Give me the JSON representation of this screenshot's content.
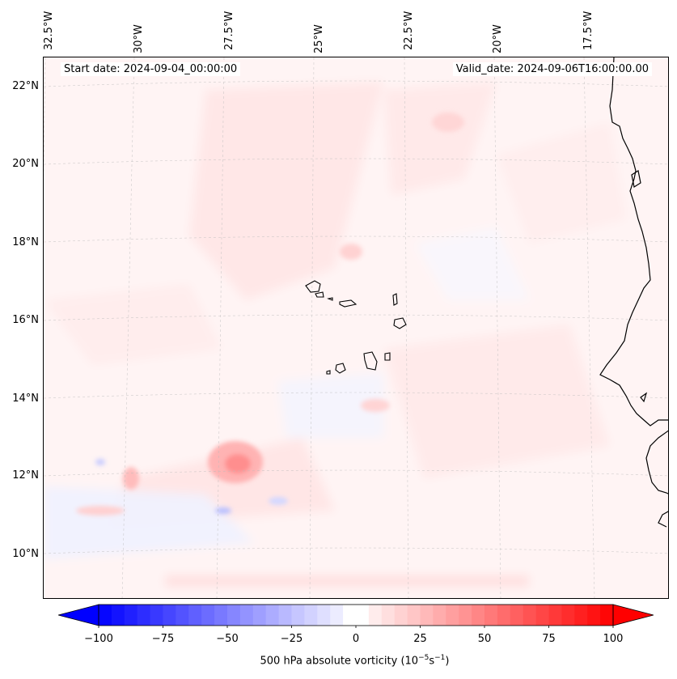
{
  "header": {
    "start_date": "Start date: 2024-09-04_00:00:00",
    "valid_date": "Valid_date: 2024-09-06T16:00:00.00"
  },
  "longitude_labels": [
    "32.5°W",
    "30°W",
    "27.5°W",
    "25°W",
    "22.5°W",
    "20°W",
    "17.5°W"
  ],
  "latitude_labels": [
    "22°N",
    "20°N",
    "18°N",
    "16°N",
    "14°N",
    "12°N",
    "10°N"
  ],
  "colorbar": {
    "ticks": [
      "−100",
      "−75",
      "−50",
      "−25",
      "0",
      "25",
      "50",
      "75",
      "100"
    ],
    "tick_values": [
      -100,
      -75,
      -50,
      -25,
      0,
      25,
      50,
      75,
      100
    ],
    "min": -100,
    "max": 100,
    "step": 5,
    "label_prefix": "500 hPa absolute vorticity (10",
    "label_exp1": "−5",
    "label_mid": "s",
    "label_exp2": "−1",
    "label_suffix": ")",
    "color_low": "#0000ff",
    "color_mid": "#ffffff",
    "color_high": "#ff0000"
  },
  "islands": [
    "Santo Antão",
    "São Vicente",
    "Santa Luzia",
    "São Nicolau",
    "Sal",
    "Boa Vista",
    "Brava",
    "Fogo",
    "Santiago",
    "Maio"
  ]
}
